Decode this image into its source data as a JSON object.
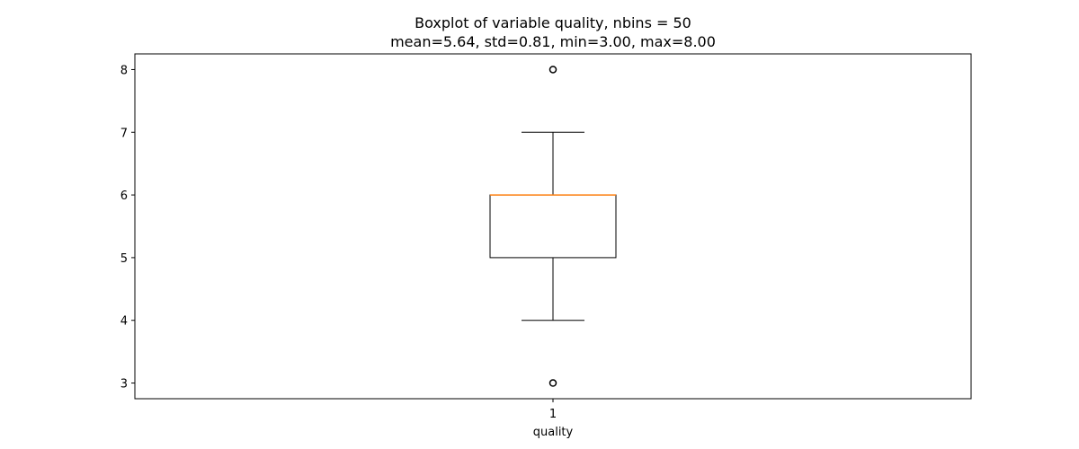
{
  "chart_data": {
    "type": "box",
    "title": "Boxplot of variable quality, nbins = 50",
    "subtitle": "mean=5.64, std=0.81, min=3.00, max=8.00",
    "xlabel": "quality",
    "ylabel": "",
    "categories": [
      "1"
    ],
    "ylim": [
      2.75,
      8.25
    ],
    "yticks": [
      3,
      4,
      5,
      6,
      7,
      8
    ],
    "grid": false,
    "boxes": [
      {
        "category": "1",
        "whisker_low": 4,
        "q1": 5,
        "median": 6,
        "q3": 6,
        "whisker_high": 7,
        "outliers": [
          3,
          8
        ]
      }
    ],
    "colors": {
      "box": "#000000",
      "median": "#ff7f0e",
      "outlier": "#000000"
    }
  }
}
